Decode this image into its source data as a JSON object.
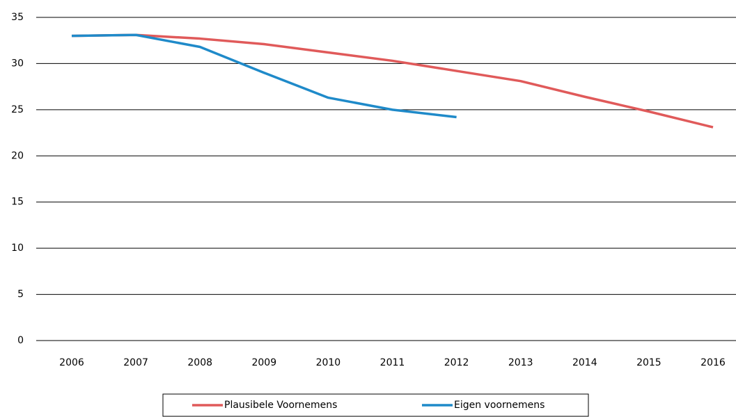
{
  "chart_data": {
    "type": "line",
    "categories": [
      "2006",
      "2007",
      "2008",
      "2009",
      "2010",
      "2011",
      "2012",
      "2013",
      "2014",
      "2015",
      "2016"
    ],
    "series": [
      {
        "name": "Plausibele Voornemens",
        "color": "#e05a5a",
        "values": [
          33.0,
          33.1,
          32.7,
          32.1,
          31.2,
          30.3,
          29.2,
          28.1,
          26.4,
          24.8,
          23.1
        ]
      },
      {
        "name": "Eigen voornemens",
        "color": "#1f8ac9",
        "values": [
          33.0,
          33.1,
          31.8,
          29.0,
          26.3,
          25.0,
          24.2,
          null,
          null,
          null,
          null
        ]
      }
    ],
    "ylim": [
      0,
      35
    ],
    "yticks": [
      0,
      5,
      10,
      15,
      20,
      25,
      30,
      35
    ],
    "grid": true,
    "legend": "bottom"
  }
}
